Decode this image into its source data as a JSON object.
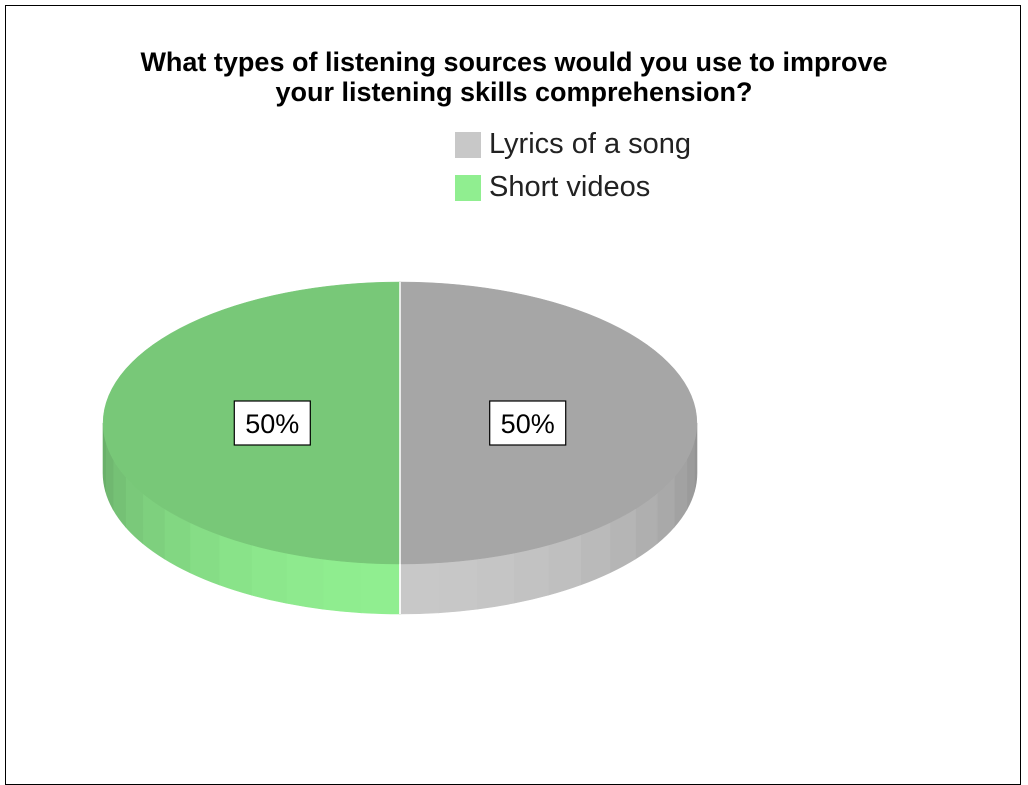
{
  "chart_data": {
    "type": "pie",
    "title_lines": [
      "What types of listening sources would you use to improve",
      "your listening skills comprehension?"
    ],
    "slices": [
      {
        "label": "Lyrics of a song",
        "value": 50,
        "display": "50%",
        "color": "#c8c8c8",
        "top_color": "#a6a6a6"
      },
      {
        "label": "Short videos",
        "value": 50,
        "display": "50%",
        "color": "#90ee90",
        "top_color": "#78c878"
      }
    ],
    "style": "3d",
    "legend_position": "top-right"
  }
}
